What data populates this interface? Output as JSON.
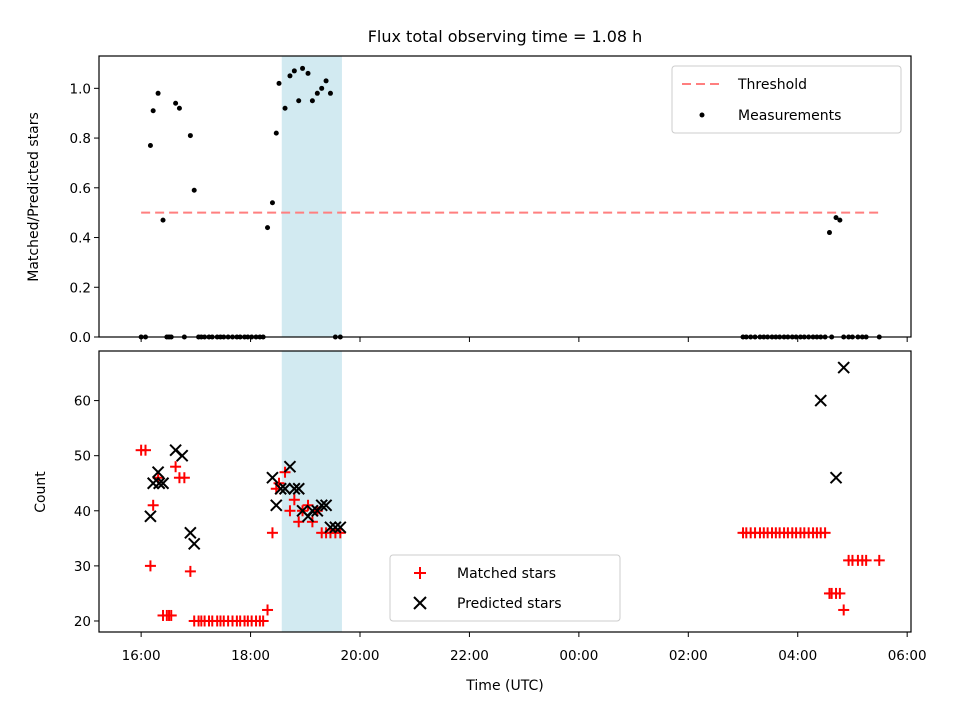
{
  "chart_data": [
    {
      "type": "scatter",
      "panel": "top",
      "title": "Flux total observing time = 1.08 h",
      "xlabel": "",
      "ylabel": "Matched/Predicted stars",
      "ylim": [
        0,
        1.13
      ],
      "yticks": [
        0.0,
        0.2,
        0.4,
        0.6,
        0.8,
        1.0
      ],
      "ytick_labels": [
        "0.0",
        "0.2",
        "0.4",
        "0.6",
        "0.8",
        "1.0"
      ],
      "x_unit": "hours since 16:00 UTC",
      "xlim": [
        -0.77,
        14.07
      ],
      "shaded_span": {
        "start": 2.57,
        "end": 3.67,
        "color": "#add8e6"
      },
      "threshold": {
        "name": "Threshold",
        "value": 0.5,
        "x_start": 0.0,
        "x_end": 13.48,
        "color": "#ff7f7f"
      },
      "series": [
        {
          "name": "Measurements",
          "color": "#000000",
          "x": [
            0.0,
            0.08,
            0.17,
            0.22,
            0.31,
            0.4,
            0.47,
            0.51,
            0.55,
            0.63,
            0.7,
            0.79,
            0.9,
            0.97,
            1.05,
            1.1,
            1.16,
            1.24,
            1.3,
            1.39,
            1.45,
            1.51,
            1.59,
            1.67,
            1.75,
            1.81,
            1.89,
            1.95,
            2.02,
            2.1,
            2.17,
            2.23,
            2.31,
            2.4,
            2.47,
            2.52,
            2.63,
            2.72,
            2.8,
            2.88,
            2.95,
            3.05,
            3.13,
            3.22,
            3.3,
            3.38,
            3.46,
            3.55,
            3.64,
            11.0,
            11.06,
            11.14,
            11.22,
            11.31,
            11.38,
            11.45,
            11.53,
            11.6,
            11.67,
            11.75,
            11.82,
            11.9,
            11.97,
            12.05,
            12.12,
            12.2,
            12.28,
            12.35,
            12.42,
            12.5,
            12.58,
            12.62,
            12.7,
            12.77,
            12.84,
            12.93,
            13.0,
            13.1,
            13.18,
            13.25,
            13.49
          ],
          "y": [
            0,
            0,
            0.77,
            0.91,
            0.98,
            0.47,
            0,
            0,
            0,
            0.94,
            0.92,
            0,
            0.81,
            0.59,
            0,
            0,
            0,
            0,
            0,
            0,
            0,
            0,
            0,
            0,
            0,
            0,
            0,
            0,
            0,
            0,
            0,
            0,
            0.44,
            0.54,
            0.82,
            1.02,
            0.92,
            1.05,
            1.07,
            0.95,
            1.08,
            1.06,
            0.95,
            0.98,
            1.0,
            1.03,
            0.98,
            0,
            0,
            0,
            0,
            0,
            0,
            0,
            0,
            0,
            0,
            0,
            0,
            0,
            0,
            0,
            0,
            0,
            0,
            0,
            0,
            0,
            0,
            0,
            0.42,
            0,
            0.48,
            0.47,
            0,
            0,
            0,
            0,
            0,
            0,
            0
          ]
        }
      ],
      "legend_position": "top-right"
    },
    {
      "type": "scatter",
      "panel": "bottom",
      "title": "",
      "xlabel": "Time (UTC)",
      "ylabel": "Count",
      "ylim": [
        18,
        69
      ],
      "yticks": [
        20,
        30,
        40,
        50,
        60
      ],
      "ytick_labels": [
        "20",
        "30",
        "40",
        "50",
        "60"
      ],
      "x_unit": "hours since 16:00 UTC",
      "xlim": [
        -0.77,
        14.07
      ],
      "xticks": [
        0,
        2,
        4,
        6,
        8,
        10,
        12,
        14
      ],
      "xtick_labels": [
        "16:00",
        "18:00",
        "20:00",
        "22:00",
        "00:00",
        "02:00",
        "04:00",
        "06:00"
      ],
      "shaded_span": {
        "start": 2.57,
        "end": 3.67,
        "color": "#add8e6"
      },
      "series": [
        {
          "name": "Matched stars",
          "marker": "plus",
          "color": "#ff0000",
          "x": [
            0.0,
            0.08,
            0.17,
            0.22,
            0.31,
            0.4,
            0.47,
            0.51,
            0.55,
            0.63,
            0.7,
            0.79,
            0.9,
            0.97,
            1.05,
            1.1,
            1.16,
            1.24,
            1.3,
            1.39,
            1.45,
            1.51,
            1.59,
            1.67,
            1.75,
            1.81,
            1.89,
            1.95,
            2.02,
            2.1,
            2.17,
            2.23,
            2.31,
            2.4,
            2.47,
            2.52,
            2.63,
            2.72,
            2.8,
            2.88,
            2.95,
            3.05,
            3.13,
            3.22,
            3.3,
            3.38,
            3.46,
            3.55,
            3.64,
            11.0,
            11.06,
            11.14,
            11.22,
            11.31,
            11.38,
            11.45,
            11.53,
            11.6,
            11.67,
            11.75,
            11.82,
            11.9,
            11.97,
            12.05,
            12.12,
            12.2,
            12.28,
            12.35,
            12.42,
            12.5,
            12.58,
            12.62,
            12.7,
            12.77,
            12.84,
            12.93,
            13.0,
            13.1,
            13.18,
            13.25,
            13.49
          ],
          "y": [
            51,
            51,
            30,
            41,
            46,
            21,
            21,
            21,
            21,
            48,
            46,
            46,
            29,
            20,
            20,
            20,
            20,
            20,
            20,
            20,
            20,
            20,
            20,
            20,
            20,
            20,
            20,
            20,
            20,
            20,
            20,
            20,
            22,
            36,
            44,
            45,
            47,
            40,
            42,
            38,
            40,
            41,
            38,
            40,
            36,
            36,
            36,
            36,
            36,
            36,
            36,
            36,
            36,
            36,
            36,
            36,
            36,
            36,
            36,
            36,
            36,
            36,
            36,
            36,
            36,
            36,
            36,
            36,
            36,
            36,
            25,
            25,
            25,
            25,
            22,
            31,
            31,
            31,
            31,
            31,
            31
          ]
        },
        {
          "name": "Predicted stars",
          "marker": "x",
          "color": "#000000",
          "x": [
            0.17,
            0.22,
            0.31,
            0.33,
            0.4,
            0.63,
            0.75,
            0.9,
            0.97,
            2.4,
            2.47,
            2.55,
            2.63,
            2.72,
            2.8,
            2.88,
            2.95,
            3.05,
            3.13,
            3.22,
            3.3,
            3.38,
            3.46,
            3.55,
            3.64,
            12.42,
            12.7,
            12.84
          ],
          "y": [
            39,
            45,
            47,
            45,
            45,
            51,
            50,
            36,
            34,
            46,
            41,
            44,
            44,
            48,
            44,
            44,
            40,
            39,
            40,
            40,
            41,
            41,
            37,
            37,
            37,
            60,
            46,
            66
          ]
        }
      ],
      "legend_position": "lower-center"
    }
  ]
}
